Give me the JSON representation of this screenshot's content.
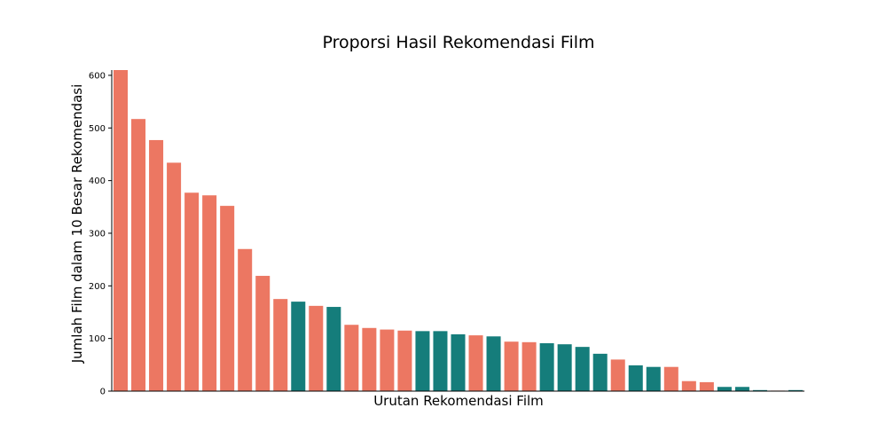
{
  "chart_data": {
    "type": "bar",
    "title": "Proporsi Hasil Rekomendasi Film",
    "xlabel": "Urutan Rekomendasi Film",
    "ylabel": "Jumlah Film dalam 10 Besar Rekomendasi",
    "ylim": [
      0,
      610
    ],
    "yticks": [
      0,
      100,
      200,
      300,
      400,
      500,
      600
    ],
    "grid": false,
    "colors": {
      "coral": "#ec7762",
      "teal": "#157d7b"
    },
    "values": [
      610,
      517,
      477,
      434,
      377,
      372,
      352,
      270,
      219,
      175,
      170,
      162,
      160,
      126,
      120,
      117,
      115,
      114,
      114,
      108,
      106,
      104,
      94,
      93,
      91,
      89,
      84,
      71,
      60,
      49,
      46,
      46,
      19,
      17,
      8,
      8,
      2,
      1,
      2
    ],
    "bar_colors": [
      "coral",
      "coral",
      "coral",
      "coral",
      "coral",
      "coral",
      "coral",
      "coral",
      "coral",
      "coral",
      "teal",
      "coral",
      "teal",
      "coral",
      "coral",
      "coral",
      "coral",
      "teal",
      "teal",
      "teal",
      "coral",
      "teal",
      "coral",
      "coral",
      "teal",
      "teal",
      "teal",
      "teal",
      "coral",
      "teal",
      "teal",
      "coral",
      "coral",
      "coral",
      "teal",
      "teal",
      "teal",
      "coral",
      "teal"
    ]
  }
}
